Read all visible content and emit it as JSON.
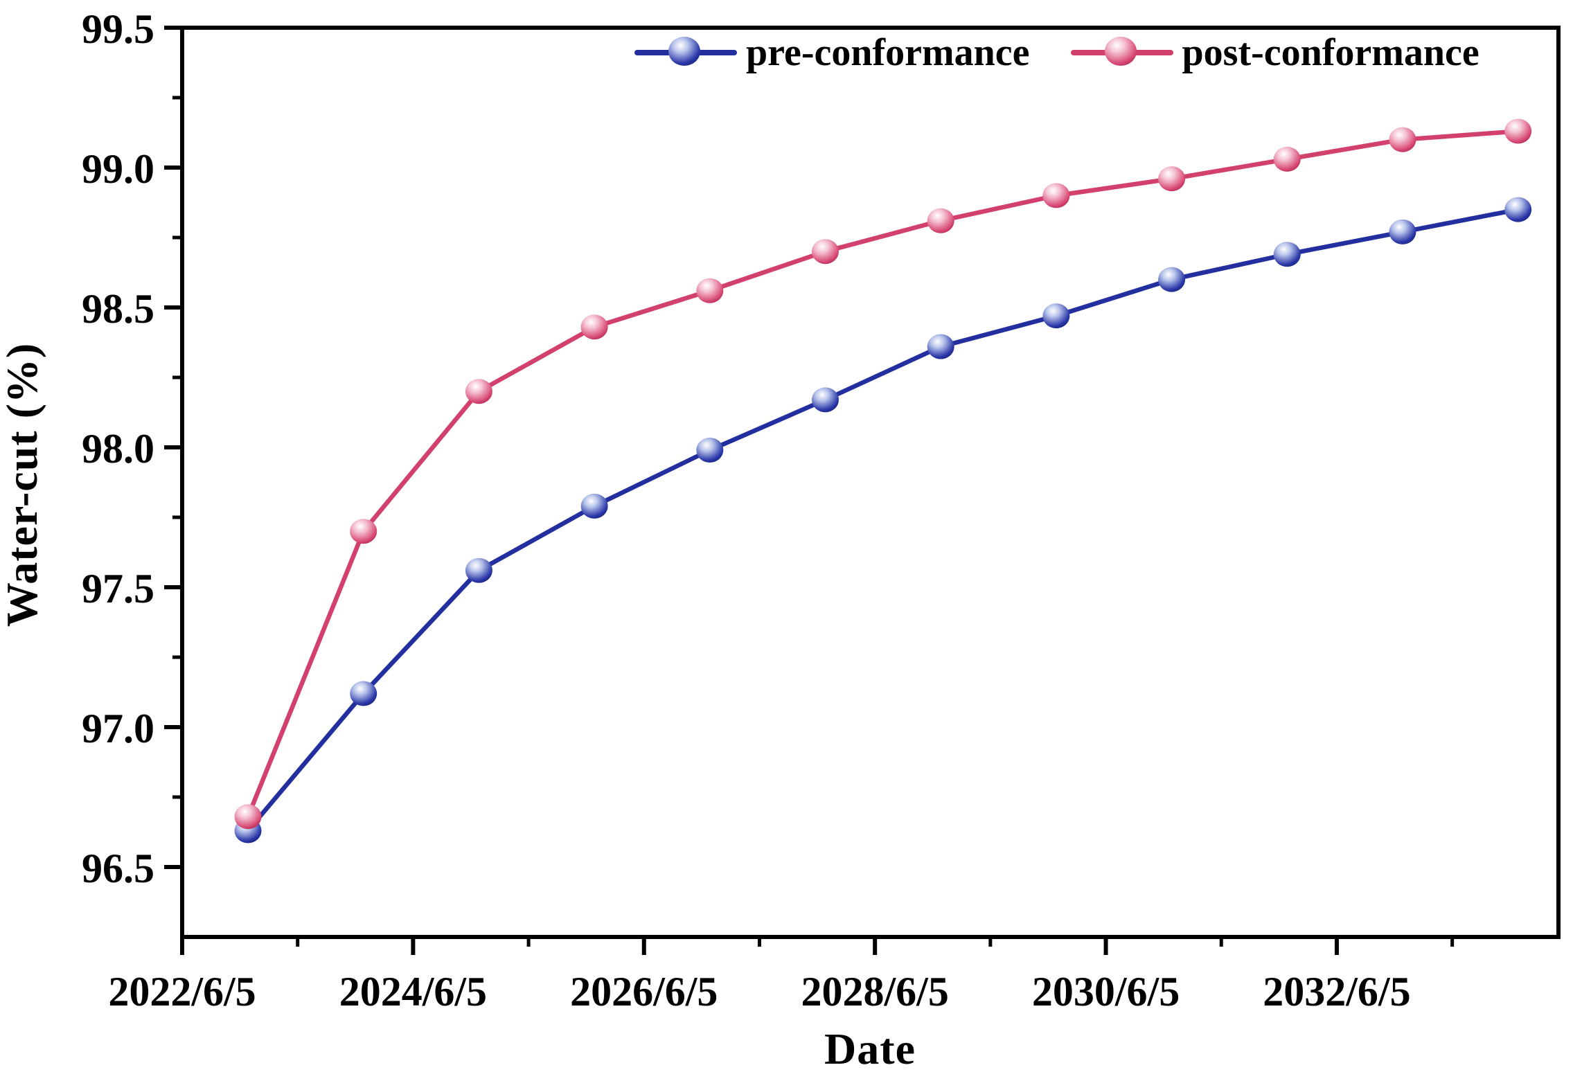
{
  "figure": {
    "background": "#ffffff",
    "axis_color": "#000000",
    "text_color": "#000000"
  },
  "chart_data": {
    "type": "line",
    "title": "",
    "xlabel": "Date",
    "ylabel": "Water-cut (%)",
    "grid": false,
    "legend_position": "top-center-inside",
    "xlim_years": [
      2022.43,
      2034.35
    ],
    "ylim": [
      96.25,
      99.5
    ],
    "x_years": [
      2023,
      2024,
      2025,
      2026,
      2027,
      2028,
      2029,
      2030,
      2031,
      2032,
      2033,
      2034
    ],
    "series": [
      {
        "name": "pre-conformance",
        "color": "#232f9e",
        "marker_gradient": [
          "#ffffff",
          "#b8c4ea",
          "#2a37a8",
          "#0e1a66"
        ],
        "values": [
          96.63,
          97.12,
          97.56,
          97.79,
          97.99,
          98.17,
          98.36,
          98.47,
          98.6,
          98.69,
          98.77,
          98.85
        ]
      },
      {
        "name": "post-conformance",
        "color": "#d2416d",
        "marker_gradient": [
          "#ffffff",
          "#f5c3d2",
          "#d84a76",
          "#9e1845"
        ],
        "values": [
          96.68,
          97.7,
          98.2,
          98.43,
          98.56,
          98.7,
          98.81,
          98.9,
          98.96,
          99.03,
          99.1,
          99.13
        ]
      }
    ],
    "yticks_major": [
      96.5,
      97.0,
      97.5,
      98.0,
      98.5,
      99.0,
      99.5
    ],
    "ytick_labels": [
      "96.5",
      "97.0",
      "97.5",
      "98.0",
      "98.5",
      "99.0",
      "99.5"
    ],
    "yticks_minor": [
      96.75,
      97.25,
      97.75,
      98.25,
      98.75,
      99.25
    ],
    "xticks_major": [
      {
        "year": 2022.43,
        "label": "2022/6/5"
      },
      {
        "year": 2024.43,
        "label": "2024/6/5"
      },
      {
        "year": 2026.43,
        "label": "2026/6/5"
      },
      {
        "year": 2028.43,
        "label": "2028/6/5"
      },
      {
        "year": 2030.43,
        "label": "2030/6/5"
      },
      {
        "year": 2032.43,
        "label": "2032/6/5"
      }
    ],
    "xticks_minor_years": [
      2023.43,
      2025.43,
      2027.43,
      2029.43,
      2031.43,
      2033.43
    ]
  }
}
